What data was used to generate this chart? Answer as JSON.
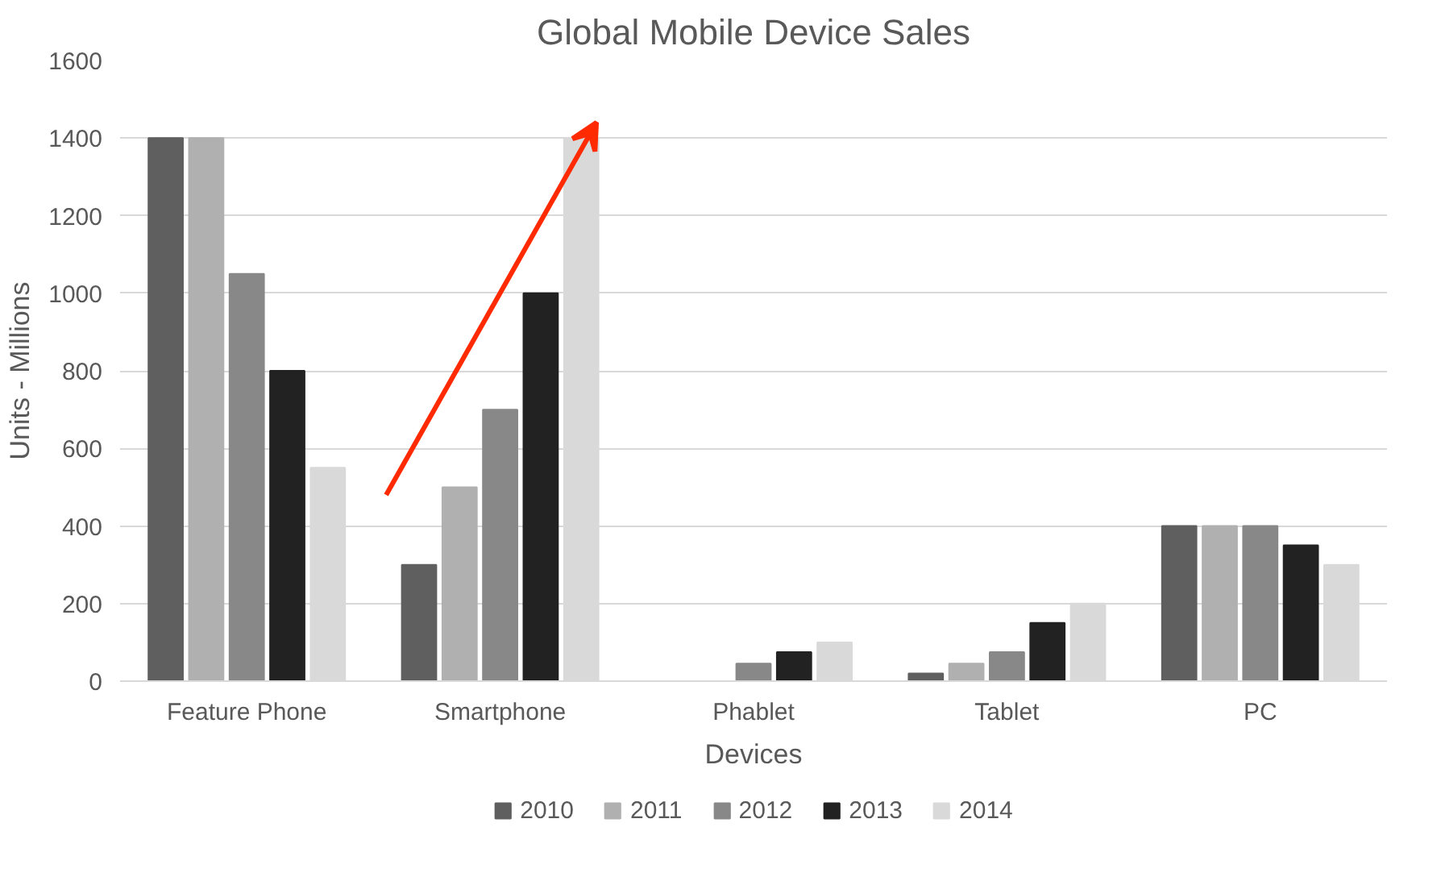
{
  "chart_data": {
    "type": "bar",
    "title": "Global Mobile Device Sales",
    "xlabel": "Devices",
    "ylabel": "Units - Millions",
    "categories": [
      "Feature Phone",
      "Smartphone",
      "Phablet",
      "Tablet",
      "PC"
    ],
    "series": [
      {
        "name": "2010",
        "color": "#5f5f5f",
        "values": [
          1400,
          300,
          0,
          20,
          400
        ]
      },
      {
        "name": "2011",
        "color": "#b0b0b0",
        "values": [
          1400,
          500,
          0,
          45,
          400
        ]
      },
      {
        "name": "2012",
        "color": "#888888",
        "values": [
          1050,
          700,
          45,
          75,
          400
        ]
      },
      {
        "name": "2013",
        "color": "#222222",
        "values": [
          800,
          1000,
          75,
          150,
          350
        ]
      },
      {
        "name": "2014",
        "color": "#d9d9d9",
        "values": [
          550,
          1400,
          100,
          200,
          300
        ]
      }
    ],
    "ylim": [
      0,
      1600
    ],
    "yticks": [
      0,
      200,
      400,
      600,
      800,
      1000,
      1200,
      1400,
      1600
    ],
    "grid": "y",
    "legend": "bottom"
  }
}
